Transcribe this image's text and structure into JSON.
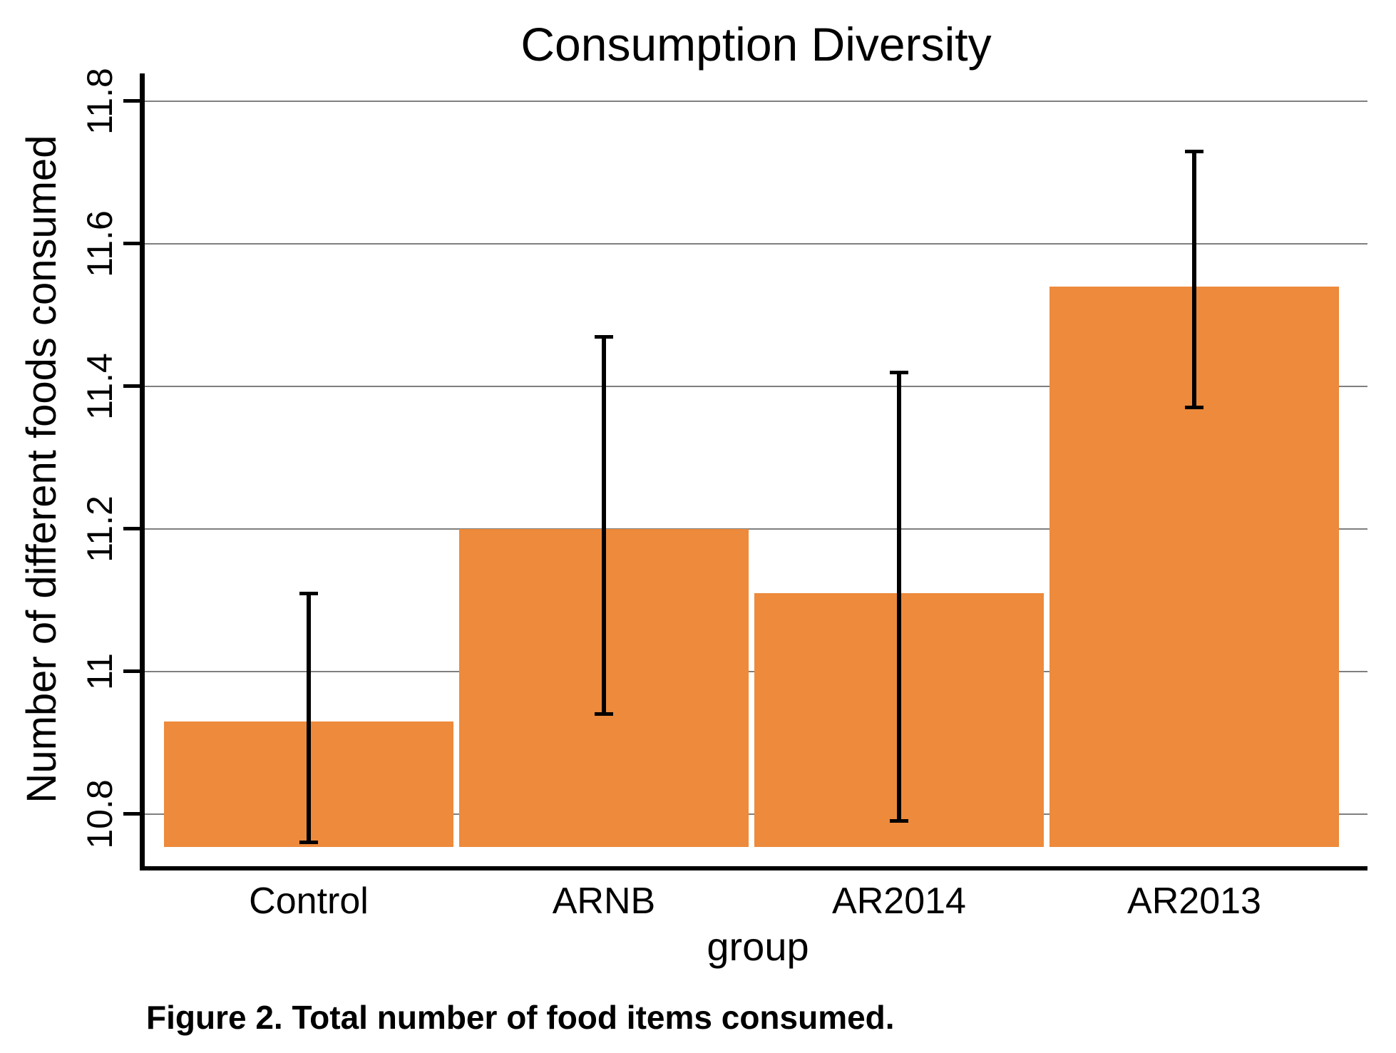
{
  "title": "Consumption Diversity",
  "caption": "Figure 2. Total number of food items consumed.",
  "chart_data": {
    "type": "bar",
    "title": "Consumption Diversity",
    "xlabel": "group",
    "ylabel": "Number of different foods consumed",
    "categories": [
      "Control",
      "ARNB",
      "AR2014",
      "AR2013"
    ],
    "values": [
      10.93,
      11.2,
      11.11,
      11.54
    ],
    "error_bars": {
      "upper": [
        11.11,
        11.47,
        11.42,
        11.73
      ],
      "lower": [
        10.76,
        10.94,
        10.79,
        11.37
      ]
    },
    "yticks": [
      10.8,
      11,
      11.2,
      11.4,
      11.6,
      11.8
    ],
    "ytick_labels": [
      "10.8",
      "11",
      "11.2",
      "11.4",
      "11.6",
      "11.8"
    ],
    "ylim": [
      10.724,
      11.839
    ],
    "bar_base": 10.754,
    "grid": true,
    "legend": "none",
    "bar_color": "#ED8A3C",
    "gridline_color": "#7F7F7F",
    "error_color": "#000000"
  }
}
